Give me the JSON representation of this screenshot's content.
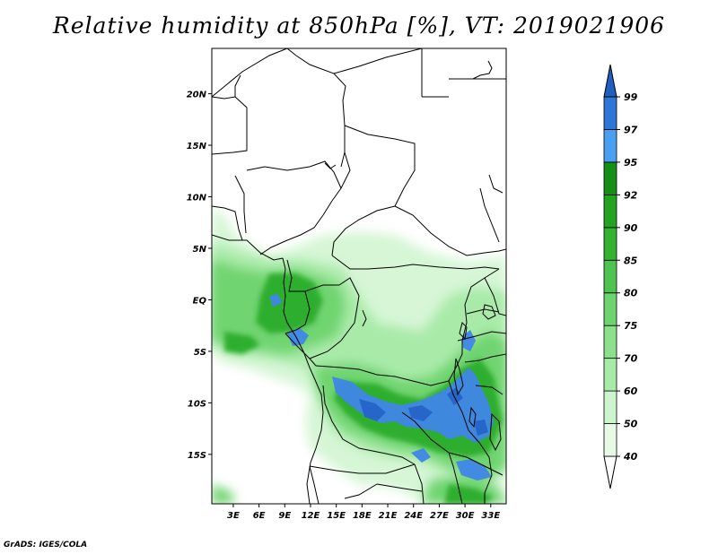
{
  "title": "Relative humidity at 850hPa [%], VT: 2019021906",
  "footer": "GrADS: IGES/COLA",
  "map": {
    "region": "Central Africa",
    "lat_labels": [
      {
        "label": "20N",
        "value": 20
      },
      {
        "label": "15N",
        "value": 15
      },
      {
        "label": "10N",
        "value": 10
      },
      {
        "label": "5N",
        "value": 5
      },
      {
        "label": "EQ",
        "value": 0
      },
      {
        "label": "5S",
        "value": -5
      },
      {
        "label": "10S",
        "value": -10
      },
      {
        "label": "15S",
        "value": -15
      }
    ],
    "lon_labels": [
      {
        "label": "3E",
        "value": 3
      },
      {
        "label": "6E",
        "value": 6
      },
      {
        "label": "9E",
        "value": 9
      },
      {
        "label": "12E",
        "value": 12
      },
      {
        "label": "15E",
        "value": 15
      },
      {
        "label": "18E",
        "value": 18
      },
      {
        "label": "21E",
        "value": 21
      },
      {
        "label": "24E",
        "value": 24
      },
      {
        "label": "27E",
        "value": 27
      },
      {
        "label": "30E",
        "value": 30
      },
      {
        "label": "33E",
        "value": 33
      }
    ],
    "lon_range": [
      0.5,
      34.8
    ],
    "lat_range": [
      -19.8,
      24.4
    ]
  },
  "colorbar": {
    "levels": [
      "40",
      "50",
      "60",
      "70",
      "75",
      "80",
      "85",
      "90",
      "92",
      "95",
      "97",
      "99"
    ],
    "colors": [
      "#ffffff",
      "#e6fae6",
      "#cdf5cd",
      "#a8eaa8",
      "#8ce08c",
      "#6ed26e",
      "#4fc34f",
      "#32b332",
      "#22a322",
      "#168f16",
      "#4aa0f0",
      "#2e77d8",
      "#1e5fc0"
    ]
  },
  "colors": {
    "land_lines": "#000000",
    "background": "#ffffff"
  }
}
